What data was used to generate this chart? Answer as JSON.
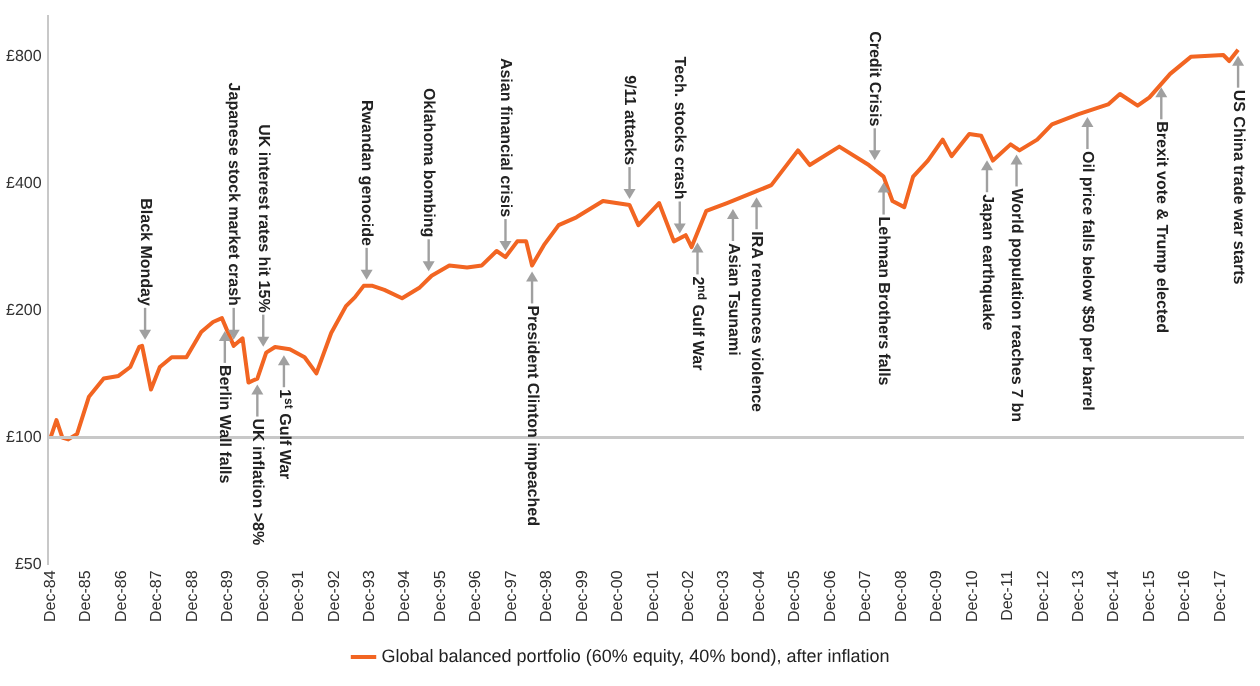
{
  "chart_data": {
    "type": "line",
    "x": [
      "1984-12",
      "1985-02",
      "1985-04",
      "1985-06",
      "1985-09",
      "1986-01",
      "1986-06",
      "1986-11",
      "1987-03",
      "1987-06",
      "1987-07",
      "1987-10",
      "1988-01",
      "1988-05",
      "1988-10",
      "1989-03",
      "1989-07",
      "1989-10",
      "1990-02",
      "1990-05",
      "1990-07",
      "1990-10",
      "1991-01",
      "1991-04",
      "1991-09",
      "1992-02",
      "1992-06",
      "1992-11",
      "1993-04",
      "1993-07",
      "1993-10",
      "1994-01",
      "1994-05",
      "1994-11",
      "1995-05",
      "1995-09",
      "1996-03",
      "1996-09",
      "1997-02",
      "1997-07",
      "1997-10",
      "1998-02",
      "1998-05",
      "1998-07",
      "1998-11",
      "1999-04",
      "1999-10",
      "2000-07",
      "2001-04",
      "2001-07",
      "2002-02",
      "2002-07",
      "2002-11",
      "2003-01",
      "2003-06",
      "2004-01",
      "2004-11",
      "2005-04",
      "2006-01",
      "2006-05",
      "2007-03",
      "2008-01",
      "2008-06",
      "2008-09",
      "2009-01",
      "2009-04",
      "2009-09",
      "2010-02",
      "2010-05",
      "2010-11",
      "2011-03",
      "2011-07",
      "2012-01",
      "2012-04",
      "2012-10",
      "2013-03",
      "2013-12",
      "2014-10",
      "2015-02",
      "2015-08",
      "2015-12",
      "2016-07",
      "2017-02",
      "2018-01",
      "2018-03",
      "2018-06"
    ],
    "series": [
      {
        "name": "Global balanced portfolio (60% equity, 40% bond), after inflation",
        "color": "#f26522",
        "values": [
          100,
          110,
          100,
          99,
          102,
          125,
          138,
          140,
          147,
          164,
          165,
          130,
          147,
          155,
          155,
          178,
          188,
          192,
          165,
          172,
          135,
          138,
          159,
          164,
          162,
          155,
          142,
          177,
          205,
          215,
          229,
          229,
          224,
          214,
          227,
          242,
          256,
          253,
          256,
          277,
          268,
          292,
          292,
          256,
          286,
          319,
          333,
          364,
          356,
          319,
          360,
          292,
          302,
          283,
          345,
          360,
          384,
          397,
          480,
          443,
          490,
          443,
          416,
          364,
          352,
          416,
          454,
          509,
          465,
          525,
          520,
          454,
          496,
          480,
          509,
          553,
          585,
          617,
          653,
          613,
          641,
          729,
          800,
          808,
          782,
          832
        ]
      }
    ],
    "log": "y",
    "xlim": [
      "1984-11",
      "2018-08"
    ],
    "xticks": [
      {
        "value": "1984-12",
        "label": "Dec-84"
      },
      {
        "value": "1985-12",
        "label": "Dec-85"
      },
      {
        "value": "1986-12",
        "label": "Dec-86"
      },
      {
        "value": "1987-12",
        "label": "Dec-87"
      },
      {
        "value": "1988-12",
        "label": "Dec-88"
      },
      {
        "value": "1989-12",
        "label": "Dec-89"
      },
      {
        "value": "1990-12",
        "label": "Dec-90"
      },
      {
        "value": "1991-12",
        "label": "Dec-91"
      },
      {
        "value": "1992-12",
        "label": "Dec-92"
      },
      {
        "value": "1993-12",
        "label": "Dec-93"
      },
      {
        "value": "1994-12",
        "label": "Dec-94"
      },
      {
        "value": "1995-12",
        "label": "Dec-95"
      },
      {
        "value": "1996-12",
        "label": "Dec-96"
      },
      {
        "value": "1997-12",
        "label": "Dec-97"
      },
      {
        "value": "1998-12",
        "label": "Dec-98"
      },
      {
        "value": "1999-12",
        "label": "Dec-99"
      },
      {
        "value": "2000-12",
        "label": "Dec-00"
      },
      {
        "value": "2001-12",
        "label": "Dec-01"
      },
      {
        "value": "2002-12",
        "label": "Dec-02"
      },
      {
        "value": "2003-12",
        "label": "Dec-03"
      },
      {
        "value": "2004-12",
        "label": "Dec-04"
      },
      {
        "value": "2005-12",
        "label": "Dec-05"
      },
      {
        "value": "2006-12",
        "label": "Dec-06"
      },
      {
        "value": "2007-12",
        "label": "Dec-07"
      },
      {
        "value": "2008-12",
        "label": "Dec-08"
      },
      {
        "value": "2009-12",
        "label": "Dec-09"
      },
      {
        "value": "2010-12",
        "label": "Dec-10"
      },
      {
        "value": "2011-12",
        "label": "Dec-11"
      },
      {
        "value": "2012-12",
        "label": "Dec-12"
      },
      {
        "value": "2013-12",
        "label": "Dec-13"
      },
      {
        "value": "2014-12",
        "label": "Dec-14"
      },
      {
        "value": "2015-12",
        "label": "Dec-15"
      },
      {
        "value": "2016-12",
        "label": "Dec-16"
      },
      {
        "value": "2017-12",
        "label": "Dec-17"
      }
    ],
    "ylim": [
      50,
      1000
    ],
    "yticks": [
      {
        "value": 50,
        "label": "£50"
      },
      {
        "value": 100,
        "label": "£100"
      },
      {
        "value": 200,
        "label": "£200"
      },
      {
        "value": 400,
        "label": "£400"
      },
      {
        "value": 800,
        "label": "£800"
      }
    ],
    "ref_lines": [
      {
        "axis": "y",
        "value": 100,
        "color": "#c8c8c8"
      }
    ],
    "legend": "bottom",
    "annotations": [
      {
        "text": "Black Monday",
        "x": "1987-08",
        "y": 165
      },
      {
        "text": "Japanese stock market crash",
        "x": "1990-02",
        "y": 165
      },
      {
        "text": "UK interest rates hit 15%",
        "x": "1990-12",
        "y": 159
      },
      {
        "text": "Rwandan genocide",
        "x": "1993-11",
        "y": 229
      },
      {
        "text": "Oklahoma bombing",
        "x": "1995-08",
        "y": 240
      },
      {
        "text": "Asian financial crisis",
        "x": "1997-10",
        "y": 268
      },
      {
        "text": "9/11 attacks",
        "x": "2001-04",
        "y": 356
      },
      {
        "text": "Tech. stocks crash",
        "x": "2002-09",
        "y": 295
      },
      {
        "text": "Credit Crisis",
        "x": "2008-03",
        "y": 440
      },
      {
        "text": "Berlin Wall falls",
        "x": "1989-11",
        "y": 185
      },
      {
        "text": "UK inflation >8%",
        "x": "1990-10",
        "y": 138
      },
      {
        "text": "1$^{st}$ Gulf War",
        "x": "1991-07",
        "y": 162
      },
      {
        "text": "President Clinton impeached",
        "x": "1998-07",
        "y": 256
      },
      {
        "text": "2$^{nd}$ Gulf War",
        "x": "2003-03",
        "y": 300
      },
      {
        "text": "Asian Tsunami",
        "x": "2004-03",
        "y": 360
      },
      {
        "text": "IRA renounces violence",
        "x": "2004-11",
        "y": 384
      },
      {
        "text": "Lehman Brothers falls",
        "x": "2008-06",
        "y": 416
      },
      {
        "text": "Japan earthquake",
        "x": "2011-05",
        "y": 470
      },
      {
        "text": "World population reaches 7 bn",
        "x": "2012-03",
        "y": 485
      },
      {
        "text": "Oil price falls below $50 per barrel",
        "x": "2014-03",
        "y": 595
      },
      {
        "text": "Brexit vote & Trump elected",
        "x": "2016-04",
        "y": 700
      },
      {
        "text": "US China trade war starts",
        "x": "2018-06",
        "y": 832
      }
    ]
  }
}
